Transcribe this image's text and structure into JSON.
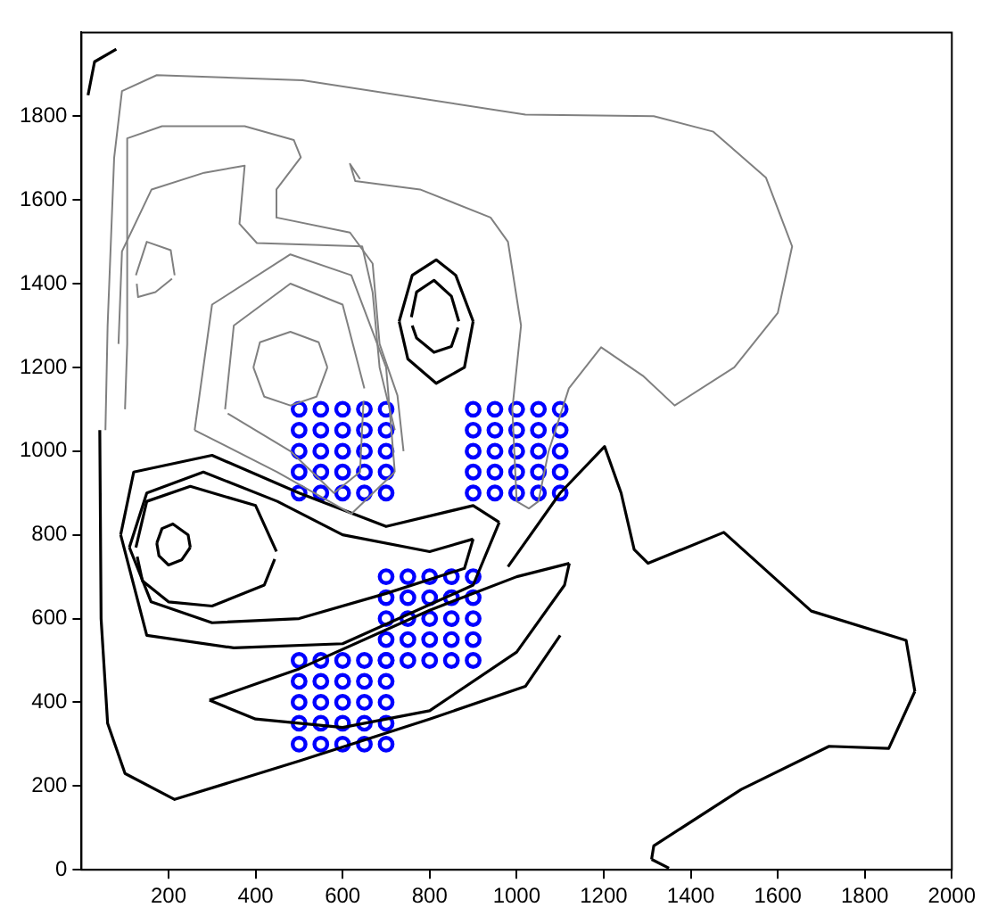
{
  "chart_data": {
    "type": "scatter",
    "xlim": [
      0,
      2000
    ],
    "ylim": [
      0,
      2000
    ],
    "xticks": [
      200,
      400,
      600,
      800,
      1000,
      1200,
      1400,
      1600,
      1800,
      2000
    ],
    "yticks": [
      0,
      200,
      400,
      600,
      800,
      1000,
      1200,
      1400,
      1600,
      1800
    ],
    "grid": false,
    "legend": false,
    "marker": "circle",
    "series": [
      {
        "type": "line",
        "marker": "none",
        "color": "#808080",
        "x": [
          55,
          60,
          75,
          93,
          173,
          508,
          1020,
          1315,
          1452,
          1573,
          1633,
          1600,
          1500,
          1363,
          1290,
          1194,
          1120,
          1073,
          1050,
          1028,
          1000,
          990,
          1010,
          980,
          940,
          778,
          629,
          617,
          640
        ],
        "values": [
          1050,
          1300,
          1700,
          1860,
          1898,
          1886,
          1804,
          1800,
          1763,
          1653,
          1489,
          1330,
          1200,
          1109,
          1180,
          1248,
          1150,
          998,
          880,
          863,
          880,
          1100,
          1300,
          1500,
          1558,
          1625,
          1645,
          1686,
          1650
        ]
      },
      {
        "type": "line",
        "marker": "none",
        "color": "#808080",
        "x": [
          100,
          105,
          105,
          185,
          375,
          488,
          504,
          448,
          448,
          617,
          669,
          685,
          726,
          740
        ],
        "values": [
          1100,
          1256,
          1747,
          1776,
          1776,
          1743,
          1702,
          1625,
          1558,
          1522,
          1448,
          1256,
          1133,
          1000
        ]
      },
      {
        "type": "line",
        "marker": "none",
        "color": "#808080",
        "x": [
          85,
          93,
          161,
          282,
          375,
          363,
          403,
          645,
          669,
          685,
          720
        ],
        "values": [
          1256,
          1477,
          1625,
          1665,
          1682,
          1543,
          1497,
          1489,
          1379,
          1200,
          1050
        ]
      },
      {
        "type": "line",
        "marker": "none",
        "color": "#808080",
        "x": [
          125,
          150,
          205,
          214
        ],
        "values": [
          1420,
          1500,
          1480,
          1420
        ]
      },
      {
        "type": "line",
        "marker": "none",
        "color": "#808080",
        "x": [
          127,
          130,
          170,
          208
        ],
        "values": [
          1400,
          1368,
          1380,
          1412
        ]
      },
      {
        "type": "line",
        "marker": "none",
        "color": "#808080",
        "x": [
          395,
          410,
          480,
          545,
          565
        ],
        "values": [
          1200,
          1260,
          1285,
          1260,
          1200
        ]
      },
      {
        "type": "line",
        "marker": "none",
        "color": "#808080",
        "x": [
          395,
          420,
          480,
          540,
          565
        ],
        "values": [
          1200,
          1130,
          1109,
          1130,
          1200
        ]
      },
      {
        "type": "line",
        "marker": "none",
        "color": "#808080",
        "x": [
          330,
          350,
          480,
          600,
          650
        ],
        "values": [
          1100,
          1300,
          1400,
          1350,
          1150
        ]
      },
      {
        "type": "line",
        "marker": "none",
        "color": "#808080",
        "x": [
          336,
          480,
          580,
          640,
          648
        ],
        "values": [
          1090,
          1000,
          900,
          950,
          1120
        ]
      },
      {
        "type": "line",
        "marker": "none",
        "color": "#808080",
        "x": [
          260,
          300,
          480,
          620,
          700,
          720
        ],
        "values": [
          1050,
          1350,
          1470,
          1420,
          1200,
          950
        ]
      },
      {
        "type": "line",
        "marker": "none",
        "color": "#808080",
        "x": [
          260,
          450,
          620,
          720
        ],
        "values": [
          1050,
          950,
          850,
          950
        ]
      },
      {
        "type": "line",
        "marker": "none",
        "color": "#000000",
        "x": [
          730,
          760,
          815,
          860,
          900
        ],
        "values": [
          1310,
          1420,
          1457,
          1420,
          1310
        ]
      },
      {
        "type": "line",
        "marker": "none",
        "color": "#000000",
        "x": [
          730,
          750,
          815,
          880,
          900
        ],
        "values": [
          1310,
          1220,
          1162,
          1200,
          1310
        ]
      },
      {
        "type": "line",
        "marker": "none",
        "color": "#000000",
        "x": [
          758,
          770,
          810,
          850,
          867
        ],
        "values": [
          1320,
          1380,
          1408,
          1370,
          1310
        ]
      },
      {
        "type": "line",
        "marker": "none",
        "color": "#000000",
        "x": [
          760,
          770,
          810,
          850,
          865
        ],
        "values": [
          1300,
          1270,
          1236,
          1250,
          1295
        ]
      },
      {
        "type": "line",
        "marker": "none",
        "color": "#000000",
        "x": [
          173,
          185,
          210,
          245,
          250
        ],
        "values": [
          780,
          815,
          826,
          800,
          770
        ]
      },
      {
        "type": "line",
        "marker": "none",
        "color": "#000000",
        "x": [
          173,
          178,
          200,
          230,
          250
        ],
        "values": [
          780,
          750,
          728,
          740,
          770
        ]
      },
      {
        "type": "line",
        "marker": "none",
        "color": "#000000",
        "x": [
          125,
          150,
          250,
          400,
          448
        ],
        "values": [
          770,
          880,
          916,
          870,
          760
        ]
      },
      {
        "type": "line",
        "marker": "none",
        "color": "#000000",
        "x": [
          128,
          140,
          200,
          300,
          420,
          444
        ],
        "values": [
          748,
          690,
          640,
          630,
          680,
          742
        ]
      },
      {
        "type": "line",
        "marker": "none",
        "color": "#000000",
        "x": [
          110,
          150,
          280,
          450,
          600,
          800,
          900
        ],
        "values": [
          770,
          900,
          950,
          880,
          800,
          760,
          790
        ]
      },
      {
        "type": "line",
        "marker": "none",
        "color": "#000000",
        "x": [
          110,
          160,
          300,
          500,
          700,
          880,
          900
        ],
        "values": [
          770,
          640,
          590,
          600,
          660,
          720,
          790
        ]
      },
      {
        "type": "line",
        "marker": "none",
        "color": "#000000",
        "x": [
          90,
          120,
          300,
          500,
          700,
          900,
          960
        ],
        "values": [
          800,
          950,
          990,
          900,
          820,
          870,
          830
        ]
      },
      {
        "type": "line",
        "marker": "none",
        "color": "#000000",
        "x": [
          90,
          150,
          350,
          600,
          900,
          960
        ],
        "values": [
          800,
          560,
          530,
          540,
          680,
          830
        ]
      },
      {
        "type": "line",
        "marker": "none",
        "color": "#000000",
        "x": [
          294,
          500,
          800,
          1000,
          1121
        ],
        "values": [
          405,
          480,
          620,
          700,
          732
        ]
      },
      {
        "type": "line",
        "marker": "none",
        "color": "#000000",
        "x": [
          294,
          400,
          600,
          800,
          1000,
          1110,
          1121
        ],
        "values": [
          405,
          360,
          340,
          380,
          520,
          680,
          732
        ]
      },
      {
        "type": "line",
        "marker": "none",
        "color": "#000000",
        "x": [
          42,
          45,
          60,
          100,
          214,
          500,
          800,
          1020,
          1100
        ],
        "values": [
          1050,
          600,
          350,
          230,
          168,
          260,
          360,
          438,
          560
        ]
      },
      {
        "type": "line",
        "marker": "none",
        "color": "#000000",
        "x": [
          980,
          1100,
          1202,
          1240,
          1270,
          1302,
          1476,
          1677,
          1895,
          1915
        ],
        "values": [
          724,
          900,
          1011,
          900,
          765,
          732,
          806,
          618,
          548,
          426
        ]
      },
      {
        "type": "line",
        "marker": "none",
        "color": "#000000",
        "x": [
          1310,
          1315,
          1516,
          1718,
          1855,
          1915
        ],
        "values": [
          25,
          57,
          192,
          295,
          290,
          426
        ]
      },
      {
        "type": "line",
        "marker": "none",
        "color": "#000000",
        "x": [
          1310,
          1350
        ],
        "values": [
          25,
          4
        ]
      },
      {
        "type": "line",
        "marker": "none",
        "color": "#000000",
        "x": [
          15,
          30,
          80
        ],
        "values": [
          1850,
          1930,
          1960
        ]
      },
      {
        "color": "#0000ff",
        "x": [
          500,
          550,
          600,
          650,
          700,
          500,
          550,
          600,
          650,
          700,
          500,
          550,
          600,
          650,
          700,
          500,
          550,
          600,
          650,
          700,
          500,
          550,
          600,
          650,
          700,
          900,
          950,
          1000,
          1050,
          1100,
          900,
          950,
          1000,
          1050,
          1100,
          900,
          950,
          1000,
          1050,
          1100,
          900,
          950,
          1000,
          1050,
          1100,
          900,
          950,
          1000,
          1050,
          1100,
          700,
          750,
          800,
          850,
          900,
          700,
          750,
          800,
          850,
          900,
          700,
          750,
          800,
          850,
          900,
          700,
          750,
          800,
          850,
          900,
          700,
          750,
          800,
          850,
          900,
          500,
          550,
          600,
          650,
          700,
          500,
          550,
          600,
          650,
          700,
          500,
          550,
          600,
          650,
          700,
          500,
          550,
          600,
          650,
          700,
          500,
          550,
          600,
          650,
          700
        ],
        "values": [
          1100,
          1100,
          1100,
          1100,
          1100,
          1050,
          1050,
          1050,
          1050,
          1050,
          1000,
          1000,
          1000,
          1000,
          1000,
          950,
          950,
          950,
          950,
          950,
          900,
          900,
          900,
          900,
          900,
          1100,
          1100,
          1100,
          1100,
          1100,
          1050,
          1050,
          1050,
          1050,
          1050,
          1000,
          1000,
          1000,
          1000,
          1000,
          950,
          950,
          950,
          950,
          950,
          900,
          900,
          900,
          900,
          900,
          700,
          700,
          700,
          700,
          700,
          650,
          650,
          650,
          650,
          650,
          600,
          600,
          600,
          600,
          600,
          550,
          550,
          550,
          550,
          550,
          500,
          500,
          500,
          500,
          500,
          500,
          500,
          500,
          500,
          500,
          450,
          450,
          450,
          450,
          450,
          400,
          400,
          400,
          400,
          400,
          350,
          350,
          350,
          350,
          350,
          300,
          300,
          300,
          300,
          300
        ]
      }
    ]
  }
}
